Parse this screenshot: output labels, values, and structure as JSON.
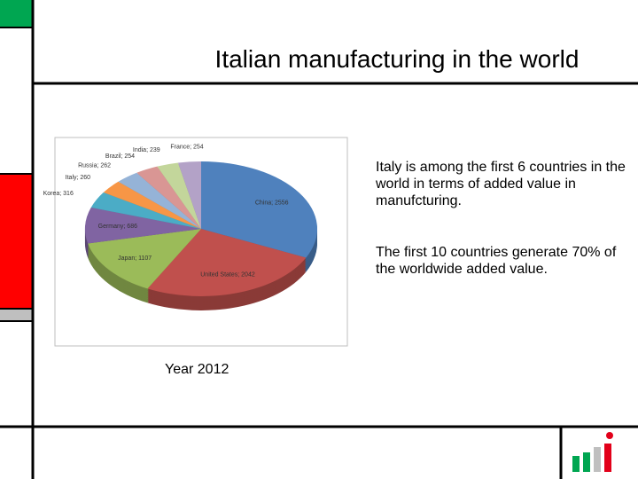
{
  "slide": {
    "title": "Italian manufacturing in the world",
    "paragraphs": [
      "Italy is among the first 6 countries in the world in terms of added value in manufcturing.",
      "The first 10 countries generate 70% of the worldwide added value."
    ],
    "caption": "Year 2012"
  },
  "chart_data": {
    "type": "pie",
    "labels": [
      "China; 2556",
      "United States; 2042",
      "Japan; 1107",
      "Germany; 686",
      "Korea; 316",
      "Italy; 260",
      "Russia; 262",
      "Brazil; 254",
      "India; 239",
      "France; 254"
    ],
    "values": [
      2556,
      2042,
      1107,
      686,
      316,
      260,
      262,
      254,
      239,
      254
    ],
    "colors": [
      "#4f81bd",
      "#c0504d",
      "#9bbb59",
      "#8064a2",
      "#4bacc6",
      "#f79646",
      "#95b3d7",
      "#d99694",
      "#c3d69b",
      "#b3a2c7"
    ]
  }
}
